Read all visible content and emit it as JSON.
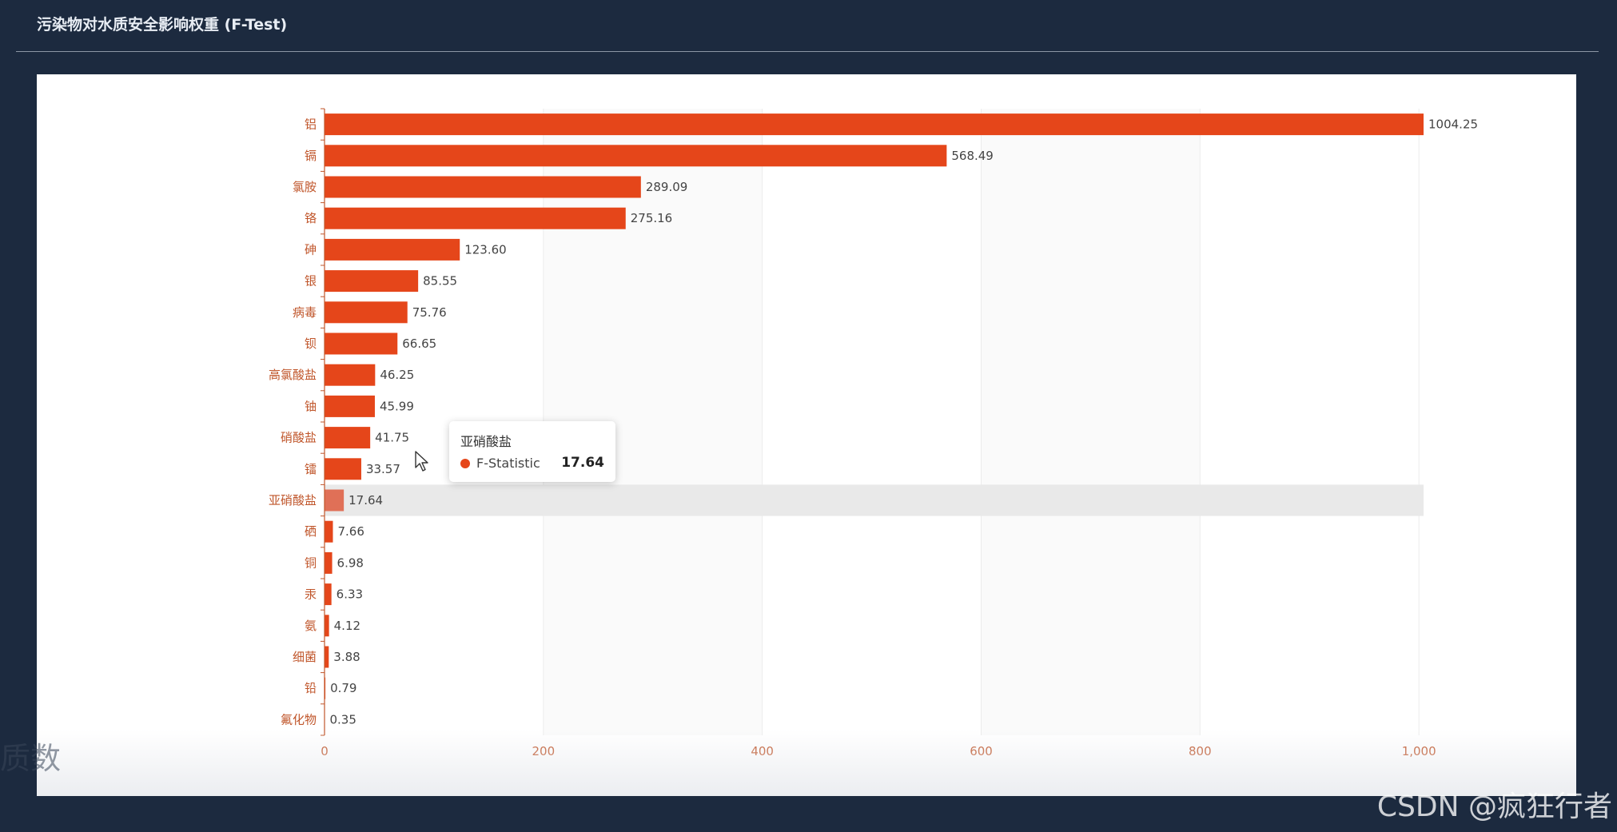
{
  "panel": {
    "title": "污染物对水质安全影响权重 (F-Test)"
  },
  "colors": {
    "bar": "#e5461a",
    "bar_highlight": "#e07057",
    "axis": "#c0562b",
    "axis_label": "#c0562b",
    "value_label": "#444444",
    "split_area": "#fafafa",
    "hover_band": "#e9e9e9"
  },
  "chart_data": {
    "type": "bar",
    "orientation": "horizontal",
    "categories": [
      "铝",
      "镉",
      "氯胺",
      "铬",
      "砷",
      "银",
      "病毒",
      "钡",
      "高氯酸盐",
      "铀",
      "硝酸盐",
      "镭",
      "亚硝酸盐",
      "硒",
      "铜",
      "汞",
      "氨",
      "细菌",
      "铅",
      "氟化物"
    ],
    "series": [
      {
        "name": "F-Statistic",
        "values": [
          1004.25,
          568.49,
          289.09,
          275.16,
          123.6,
          85.55,
          75.76,
          66.65,
          46.25,
          45.99,
          41.75,
          33.57,
          17.64,
          7.66,
          6.98,
          6.33,
          4.12,
          3.88,
          0.79,
          0.35
        ],
        "labels": [
          "1004.25",
          "568.49",
          "289.09",
          "275.16",
          "123.60",
          "85.55",
          "75.76",
          "66.65",
          "46.25",
          "45.99",
          "41.75",
          "33.57",
          "17.64",
          "7.66",
          "6.98",
          "6.33",
          "4.12",
          "3.88",
          "0.79",
          "0.35"
        ]
      }
    ],
    "xlim": [
      0,
      1004.25
    ],
    "x_ticks": [
      0,
      200,
      400,
      600,
      800,
      1000
    ],
    "x_tick_labels": [
      "0",
      "200",
      "400",
      "600",
      "800",
      "1,000"
    ],
    "title": "",
    "xlabel": "",
    "ylabel": "",
    "highlighted_category": "亚硝酸盐",
    "legend": "none"
  },
  "tooltip": {
    "title": "亚硝酸盐",
    "series_name": "F-Statistic",
    "value": "17.64"
  },
  "watermark": "CSDN @疯狂行者",
  "ghost_text": "质数"
}
